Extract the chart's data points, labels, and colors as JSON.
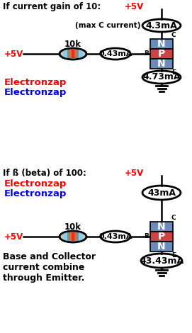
{
  "bg_color": "#ffffff",
  "n_color": "#6b8cba",
  "p_color": "#cc4444",
  "section1": {
    "title_black": "If current gain of 10: ",
    "title_red": "+5V",
    "max_c_label": "(max C current)",
    "collector_oval": "4.3mA",
    "base_oval": "0.43mA",
    "resistor_label": "10k",
    "plus5v_label": "+5V",
    "emitter_oval": "4.73mA",
    "ez_red": "Electronzap",
    "ez_blue": "Electronzap"
  },
  "section2": {
    "title_black": "If ß (beta) of 100: ",
    "title_red": "+5V",
    "collector_oval": "43mA",
    "base_oval": "0.43mA",
    "resistor_label": "10k",
    "plus5v_label": "+5V",
    "emitter_oval": "43.43mA",
    "ez_red": "Electronzap",
    "ez_blue": "Electronzap",
    "bottom_text": "Base and Collector\ncurrent combine\nthrough Emitter."
  }
}
